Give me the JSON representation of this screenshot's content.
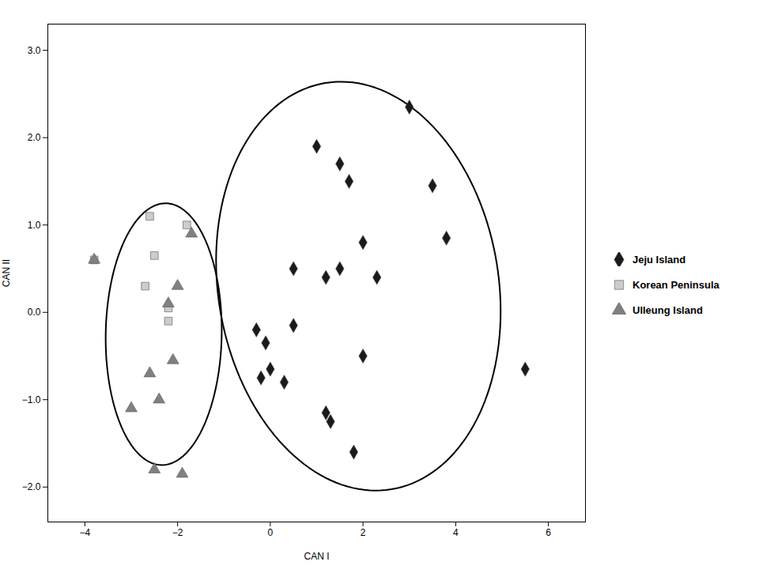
{
  "chart_data": {
    "type": "scatter",
    "xlabel": "CAN I",
    "ylabel": "CAN II",
    "xlim": [
      -4.8,
      6.8
    ],
    "ylim": [
      -2.4,
      3.3
    ],
    "xticks": [
      -4,
      -2,
      0,
      2,
      4,
      6
    ],
    "yticks": [
      -2,
      -1,
      0,
      1,
      2,
      3
    ],
    "grid": false,
    "legend": "right",
    "series": [
      {
        "name": "Jeju Island",
        "color": "#1a1a1a",
        "marker": "diamond",
        "x": [
          1.0,
          1.5,
          1.7,
          3.0,
          2.0,
          3.5,
          1.5,
          2.3,
          3.8,
          0.5,
          1.2,
          2.0,
          0.3,
          -0.2,
          0.0,
          -0.3,
          0.5,
          1.3,
          1.8,
          5.5,
          1.2,
          -0.1
        ],
        "y": [
          1.9,
          1.7,
          1.5,
          2.35,
          0.8,
          1.45,
          0.5,
          0.4,
          0.85,
          0.5,
          0.4,
          -0.5,
          -0.8,
          -0.75,
          -0.65,
          -0.2,
          -0.15,
          -1.25,
          -1.6,
          -0.65,
          -1.15,
          -0.35
        ]
      },
      {
        "name": "Korean Peninsula",
        "color": "#cccccc",
        "marker": "square",
        "x": [
          -3.8,
          -2.5,
          -2.7,
          -2.2,
          -2.6,
          -2.2,
          -1.8
        ],
        "y": [
          0.6,
          0.65,
          0.3,
          0.05,
          1.1,
          -0.1,
          1.0
        ]
      },
      {
        "name": "Ulleung Island",
        "color": "#808080",
        "marker": "triangle",
        "x": [
          -3.8,
          -3.0,
          -2.6,
          -2.4,
          -2.2,
          -2.0,
          -2.5,
          -2.1,
          -1.9,
          -1.7
        ],
        "y": [
          0.6,
          -1.1,
          -0.7,
          -1.0,
          0.1,
          0.3,
          -1.8,
          -0.55,
          -1.85,
          0.9
        ]
      }
    ],
    "ellipses": [
      {
        "cx": -2.3,
        "cy": -0.25,
        "width": 2.5,
        "height": 3.0,
        "angle": -5,
        "color": "#000000"
      },
      {
        "cx": 1.9,
        "cy": 0.3,
        "width": 6.2,
        "height": 4.6,
        "angle": -12,
        "color": "#000000"
      }
    ]
  }
}
